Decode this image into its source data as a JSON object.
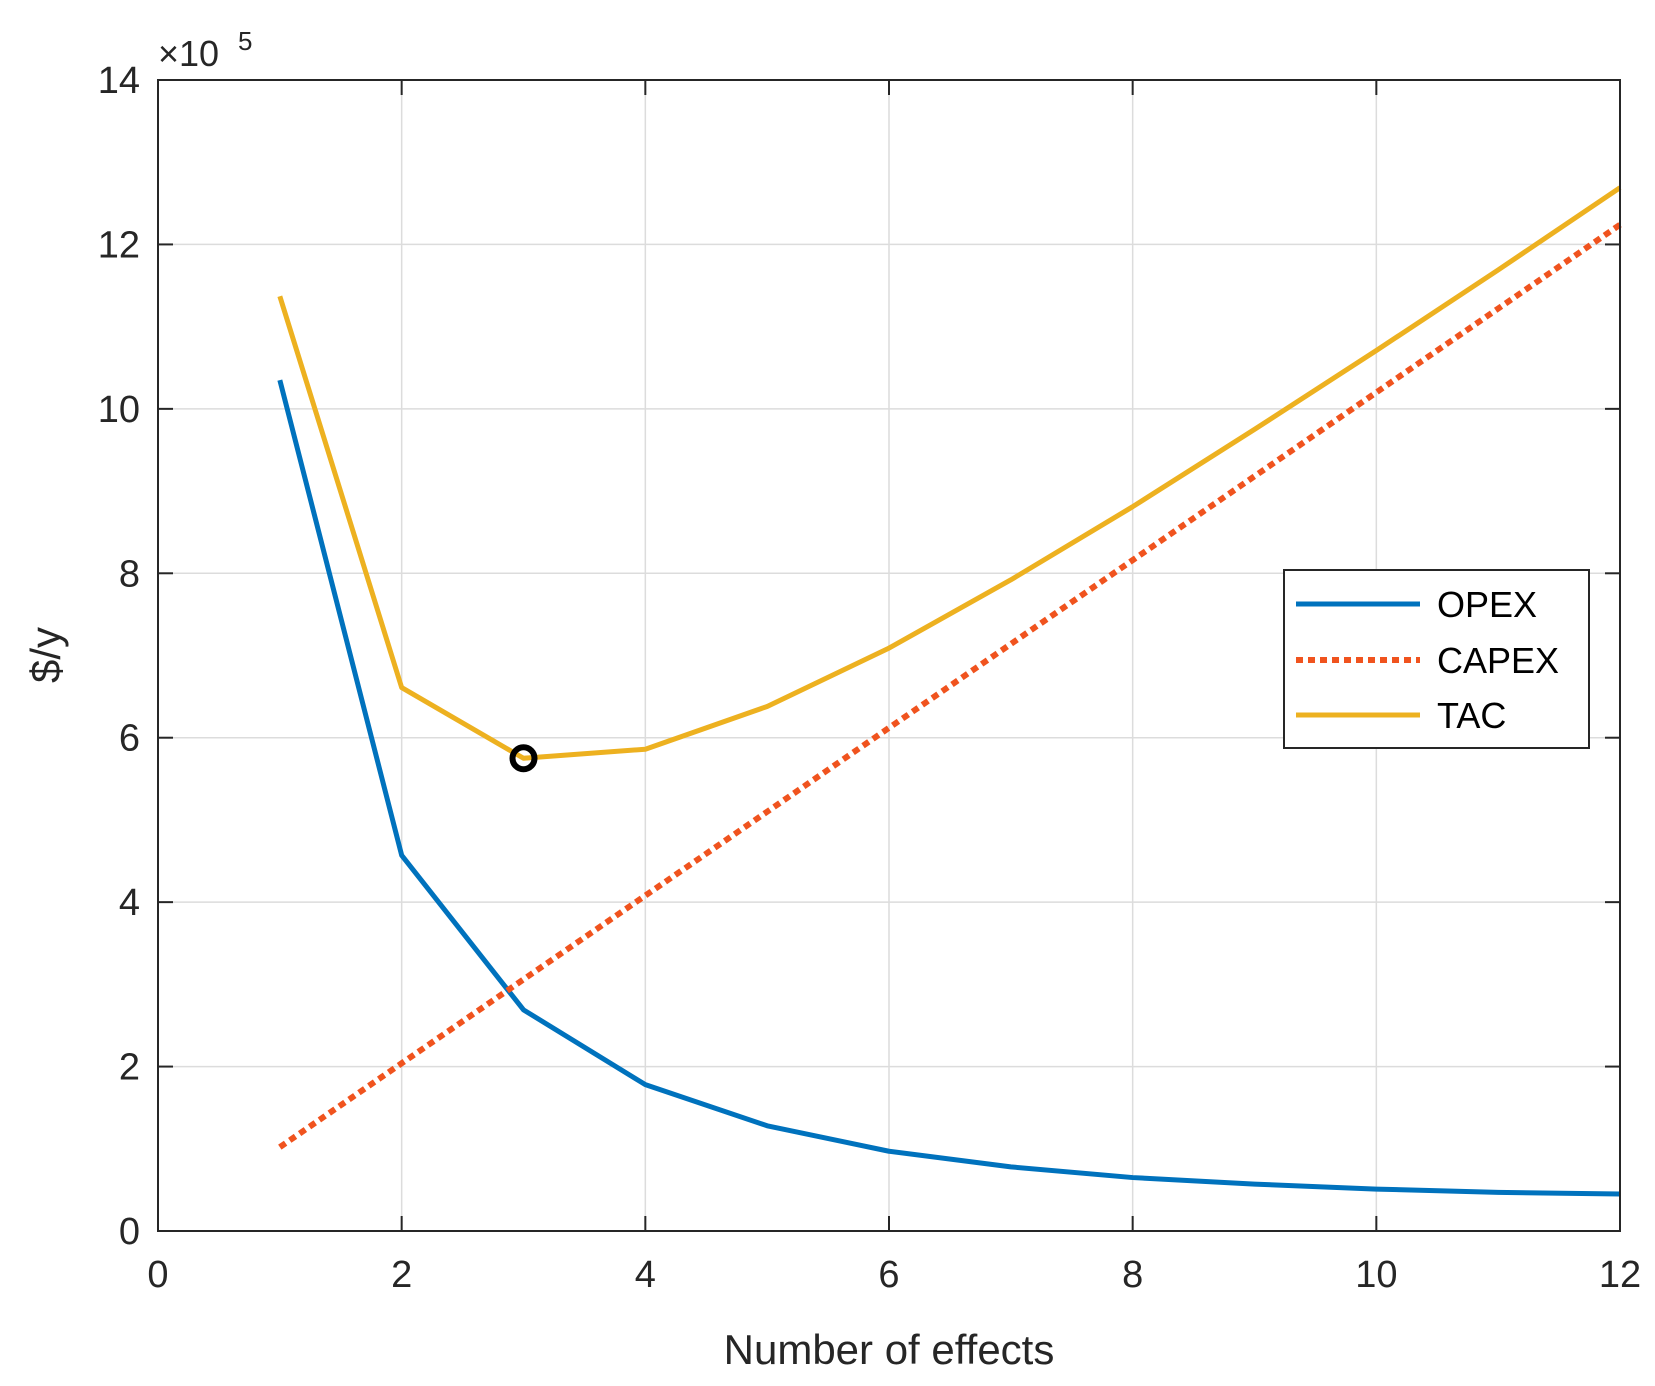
{
  "chart_data": {
    "type": "line",
    "title": "",
    "xlabel": "Number of effects",
    "ylabel": "$/y",
    "y_exponent_label": "×10",
    "y_exponent_power": "5",
    "y_scale_factor": 100000,
    "xlim": [
      0,
      12
    ],
    "ylim": [
      0,
      14
    ],
    "xticks": [
      0,
      2,
      4,
      6,
      8,
      10,
      12
    ],
    "yticks": [
      0,
      2,
      4,
      6,
      8,
      10,
      12,
      14
    ],
    "xtick_labels": [
      "0",
      "2",
      "4",
      "6",
      "8",
      "10",
      "12"
    ],
    "ytick_labels": [
      "0",
      "2",
      "4",
      "6",
      "8",
      "10",
      "12",
      "14"
    ],
    "grid": true,
    "legend_position": "right",
    "x": [
      1,
      2,
      3,
      4,
      5,
      6,
      7,
      8,
      9,
      10,
      11,
      12
    ],
    "series": [
      {
        "name": "OPEX",
        "color": "#0072BD",
        "style": "solid",
        "values": [
          10.35,
          4.57,
          2.69,
          1.78,
          1.28,
          0.97,
          0.78,
          0.65,
          0.57,
          0.51,
          0.47,
          0.45
        ]
      },
      {
        "name": "CAPEX",
        "color": "#F0531E",
        "style": "dotted",
        "values": [
          1.02,
          2.04,
          3.06,
          4.08,
          5.1,
          6.12,
          7.14,
          8.16,
          9.18,
          10.2,
          11.22,
          12.24
        ]
      },
      {
        "name": "TAC",
        "color": "#EDB120",
        "style": "solid",
        "values": [
          11.37,
          6.61,
          5.75,
          5.86,
          6.38,
          7.09,
          7.92,
          8.81,
          9.75,
          10.71,
          11.69,
          12.69
        ]
      }
    ],
    "marker": {
      "series": "TAC",
      "x": 3,
      "y": 5.75,
      "shape": "circle",
      "color": "#000000"
    }
  }
}
